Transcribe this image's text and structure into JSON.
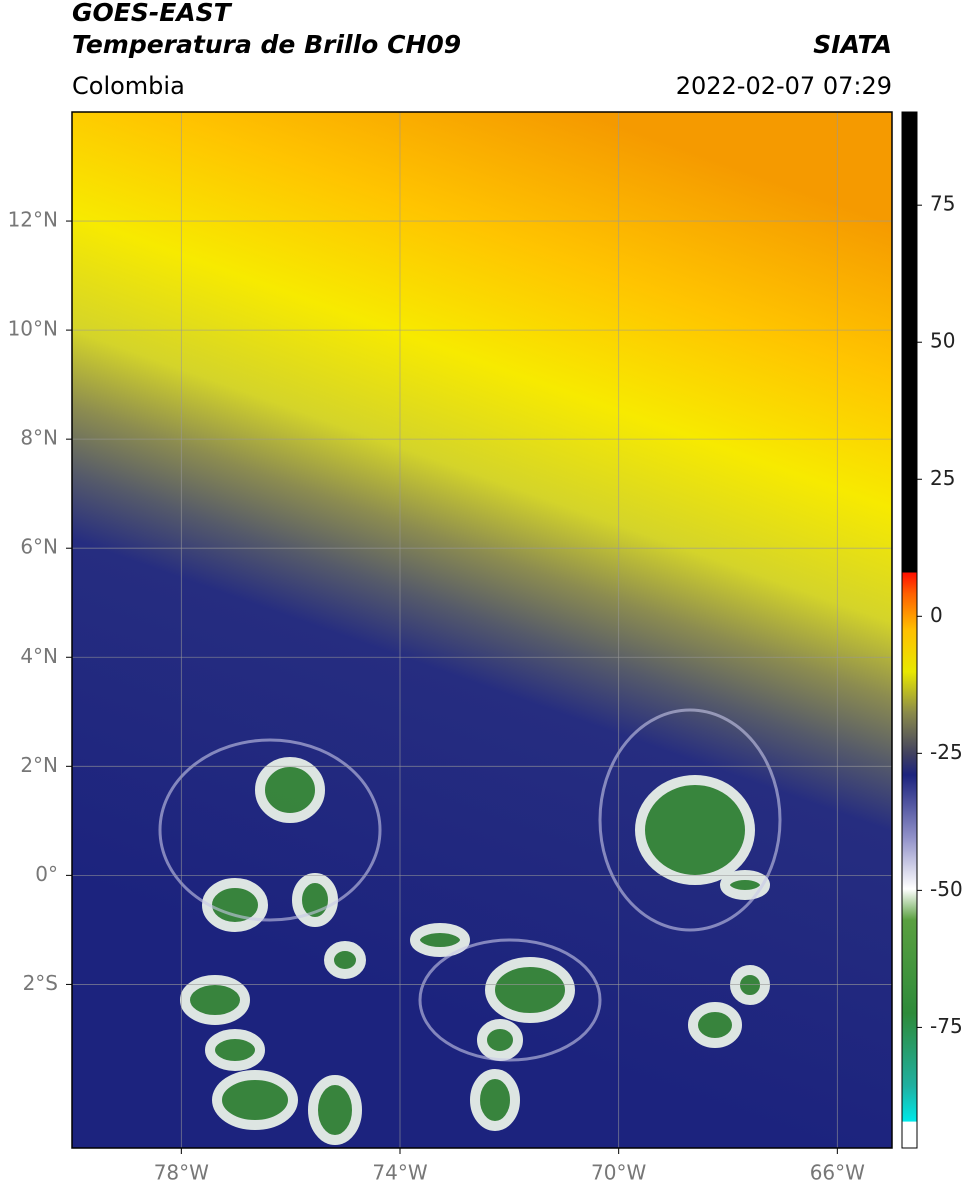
{
  "header": {
    "satellite": "GOES-EAST",
    "product": "Temperatura de Brillo CH09",
    "region": "Colombia",
    "source": "SIATA",
    "datetime": "2022-02-07 07:29"
  },
  "map": {
    "xlim": [
      -80,
      -65
    ],
    "ylim": [
      -5,
      14
    ],
    "xticks": [
      {
        "value": -78,
        "label": "78°W"
      },
      {
        "value": -74,
        "label": "74°W"
      },
      {
        "value": -70,
        "label": "70°W"
      },
      {
        "value": -66,
        "label": "66°W"
      }
    ],
    "yticks": [
      {
        "value": 12,
        "label": "12°N"
      },
      {
        "value": 10,
        "label": "10°N"
      },
      {
        "value": 8,
        "label": "8°N"
      },
      {
        "value": 6,
        "label": "6°N"
      },
      {
        "value": 4,
        "label": "4°N"
      },
      {
        "value": 2,
        "label": "2°N"
      },
      {
        "value": 0,
        "label": "0°"
      },
      {
        "value": -2,
        "label": "2°S"
      }
    ],
    "grid": true
  },
  "colorbar": {
    "ylim": [
      -97,
      92
    ],
    "yticks": [
      75,
      50,
      25,
      0,
      -25,
      -50,
      -75
    ]
  }
}
